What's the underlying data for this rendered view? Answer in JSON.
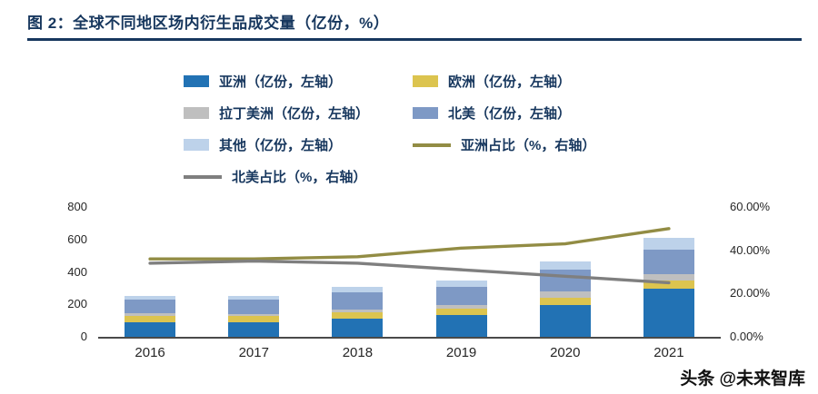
{
  "header": {
    "title": "图 2：全球不同地区场内衍生品成交量（亿份，%）"
  },
  "watermark": {
    "text": "头条 @未来智库"
  },
  "colors": {
    "title_navy": "#17375E",
    "axis_text": "#262626",
    "axis_line": "#4a4a4a"
  },
  "chart_data": {
    "type": "bar",
    "title": "全球不同地区场内衍生品成交量（亿份，%）",
    "categories": [
      "2016",
      "2017",
      "2018",
      "2019",
      "2020",
      "2021"
    ],
    "bar_series": [
      {
        "name": "亚洲（亿份，左轴）",
        "color": "#2272B4",
        "values": [
          90,
          90,
          110,
          135,
          195,
          295
        ]
      },
      {
        "name": "欧洲（亿份，左轴）",
        "color": "#DCC44F",
        "values": [
          40,
          38,
          42,
          40,
          48,
          50
        ]
      },
      {
        "name": "拉丁美洲（亿份，左轴）",
        "color": "#BFBFBF",
        "values": [
          14,
          14,
          16,
          22,
          34,
          42
        ]
      },
      {
        "name": "北美（亿份，左轴）",
        "color": "#7E99C5",
        "values": [
          88,
          90,
          105,
          110,
          135,
          150
        ]
      },
      {
        "name": "其他（亿份，左轴）",
        "color": "#BDD2EA",
        "values": [
          22,
          22,
          32,
          40,
          50,
          70
        ]
      }
    ],
    "line_series": [
      {
        "name": "亚洲占比（%，右轴）",
        "color": "#928C44",
        "values": [
          36,
          36,
          37,
          41,
          43,
          50
        ]
      },
      {
        "name": "北美占比（%，右轴）",
        "color": "#7F7F7F",
        "values": [
          34,
          35,
          34,
          31,
          28,
          25
        ]
      }
    ],
    "left_axis": {
      "ticks": [
        0,
        200,
        400,
        600,
        800
      ],
      "max": 800
    },
    "right_axis": {
      "tick_labels": [
        "0.00%",
        "20.00%",
        "40.00%",
        "60.00%"
      ],
      "max": 60
    },
    "legend_position": "top",
    "grid": false
  }
}
